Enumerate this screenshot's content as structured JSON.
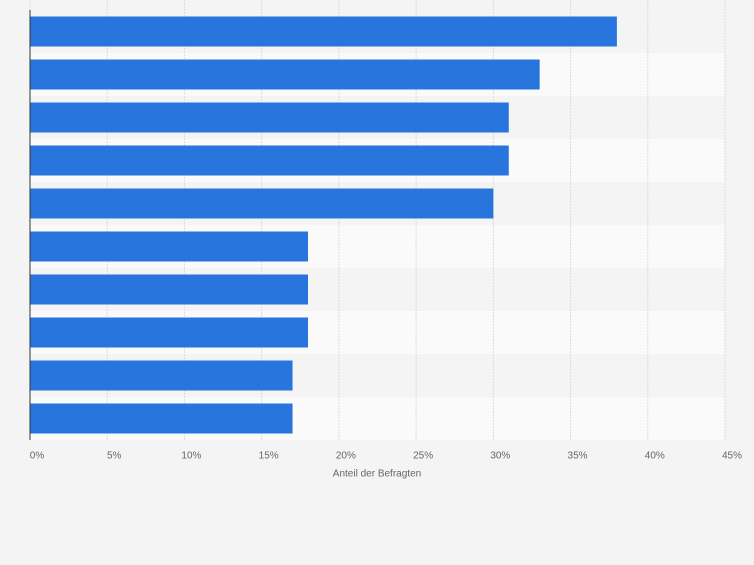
{
  "chart_data": {
    "type": "hbar",
    "x_label": "Anteil der Befragten",
    "categories": [
      null,
      null,
      null,
      null,
      null,
      null,
      null,
      null,
      null,
      null
    ],
    "values": [
      38,
      33,
      31,
      31,
      30,
      18,
      18,
      18,
      17,
      17
    ],
    "color": "#2876dd",
    "xlim": [
      0,
      45
    ],
    "xticks": [
      {
        "value": 0,
        "label": "0%"
      },
      {
        "value": 5,
        "label": "5%"
      },
      {
        "value": 10,
        "label": "10%"
      },
      {
        "value": 15,
        "label": "15%"
      },
      {
        "value": 20,
        "label": "20%"
      },
      {
        "value": 25,
        "label": "25%"
      },
      {
        "value": 30,
        "label": "30%"
      },
      {
        "value": 35,
        "label": "35%"
      },
      {
        "value": 40,
        "label": "40%"
      },
      {
        "value": 45,
        "label": "45%"
      }
    ],
    "grid": true
  }
}
